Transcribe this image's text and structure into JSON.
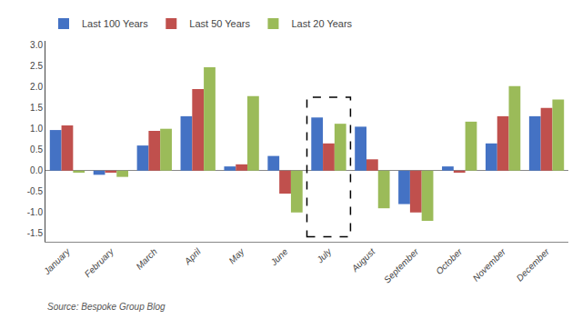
{
  "chart_data": {
    "type": "bar",
    "categories": [
      "January",
      "February",
      "March",
      "April",
      "May",
      "June",
      "July",
      "August",
      "September",
      "October",
      "November",
      "December"
    ],
    "series": [
      {
        "name": "Last 100 Years",
        "color": "#4472C4",
        "values": [
          0.97,
          -0.1,
          0.6,
          1.3,
          0.1,
          0.35,
          1.27,
          1.05,
          -0.8,
          0.1,
          0.65,
          1.3
        ]
      },
      {
        "name": "Last 50 Years",
        "color": "#C0504D",
        "values": [
          1.08,
          -0.05,
          0.95,
          1.95,
          0.15,
          -0.55,
          0.65,
          0.27,
          -1.0,
          -0.05,
          1.3,
          1.5
        ]
      },
      {
        "name": "Last 20 Years",
        "color": "#9BBB59",
        "values": [
          -0.05,
          -0.15,
          1.0,
          2.47,
          1.78,
          -1.0,
          1.12,
          -0.9,
          -1.2,
          1.17,
          2.02,
          1.7
        ]
      }
    ],
    "ylim": [
      -1.7,
      3.1
    ],
    "yticks": [
      -1.5,
      {
        "value": -1.0,
        "label": "-1.0"
      },
      -0.5,
      {
        "value": 0.0,
        "label": "0.0"
      },
      0.5,
      {
        "value": 1.0,
        "label": "1.0"
      },
      1.5,
      {
        "value": 2.0,
        "label": "2.0"
      },
      2.5,
      {
        "value": 3.0,
        "label": "3.0"
      }
    ],
    "grid": false,
    "legend": "top",
    "source": "Source: Bespoke Group Blog",
    "highlight": "July"
  }
}
